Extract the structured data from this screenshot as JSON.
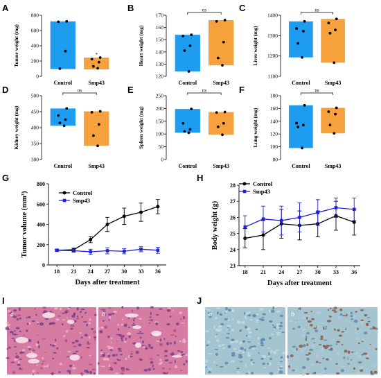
{
  "colors": {
    "control_bar": "#1e9cf0",
    "smp43_bar": "#f7a13c",
    "control_line": "#000000",
    "smp43_line": "#1f1fe0",
    "he_base": "#d67ca2",
    "ihc_base": "#a4c4d0",
    "ihc_stain": "#8a4a30"
  },
  "chart_data": [
    {
      "panel": "A",
      "type": "bar",
      "categories": [
        "Control",
        "Smp43"
      ],
      "ylabel": "Tumor weight (mg)",
      "ylim": [
        0,
        800
      ],
      "yticks": [
        0,
        200,
        400,
        600,
        800
      ],
      "values": [
        720,
        245
      ],
      "bar_bottom": [
        95,
        90
      ],
      "points": [
        [
          720,
          715,
          330,
          100
        ],
        [
          245,
          225,
          185,
          130,
          105
        ]
      ],
      "annotations": [
        "*"
      ]
    },
    {
      "panel": "B",
      "type": "bar",
      "categories": [
        "Control",
        "Smp43"
      ],
      "ylabel": "Heart weight (mg)",
      "ylim": [
        120,
        170
      ],
      "yticks": [
        120,
        130,
        140,
        150,
        160,
        170
      ],
      "values": [
        154,
        166
      ],
      "bar_bottom": [
        124,
        129
      ],
      "points": [
        [
          154,
          153,
          145,
          141,
          124
        ],
        [
          166,
          165,
          148,
          135,
          129
        ]
      ],
      "annotations": [
        "ns"
      ]
    },
    {
      "panel": "C",
      "type": "bar",
      "categories": [
        "Control",
        "Smp43"
      ],
      "ylabel": "Liver weight (mg)",
      "ylim": [
        1100,
        1400
      ],
      "yticks": [
        1100,
        1200,
        1300,
        1400
      ],
      "values": [
        1370,
        1382
      ],
      "bar_bottom": [
        1193,
        1167
      ],
      "points": [
        [
          1370,
          1335,
          1322,
          1262,
          1193
        ],
        [
          1382,
          1362,
          1328,
          1312,
          1167
        ]
      ],
      "annotations": [
        "ns"
      ]
    },
    {
      "panel": "D",
      "type": "bar",
      "categories": [
        "Control",
        "Smp43"
      ],
      "ylabel": "Kidney weight (mg)",
      "ylim": [
        300,
        500
      ],
      "yticks": [
        300,
        350,
        400,
        450,
        500
      ],
      "values": [
        460,
        451
      ],
      "bar_bottom": [
        406,
        343
      ],
      "points": [
        [
          460,
          438,
          425,
          415,
          406
        ],
        [
          451,
          448,
          410,
          375,
          343
        ]
      ],
      "annotations": [
        "ns"
      ]
    },
    {
      "panel": "E",
      "type": "bar",
      "categories": [
        "Control",
        "Smp43"
      ],
      "ylabel": "Spleen weight (mg)",
      "ylim": [
        0,
        250
      ],
      "yticks": [
        0,
        50,
        100,
        150,
        200,
        250
      ],
      "values": [
        198,
        186
      ],
      "bar_bottom": [
        105,
        97
      ],
      "points": [
        [
          198,
          142,
          118,
          110,
          105
        ],
        [
          186,
          184,
          142,
          128,
          97
        ]
      ],
      "annotations": [
        "ns"
      ]
    },
    {
      "panel": "F",
      "type": "bar",
      "categories": [
        "Control",
        "Smp43"
      ],
      "ylabel": "Lung weight (mg)",
      "ylim": [
        80,
        180
      ],
      "yticks": [
        80,
        100,
        120,
        140,
        160,
        180
      ],
      "values": [
        165,
        161
      ],
      "bar_bottom": [
        98,
        121
      ],
      "points": [
        [
          165,
          137,
          134,
          131,
          98
        ],
        [
          161,
          155,
          151,
          134,
          121
        ]
      ],
      "annotations": [
        "ns"
      ]
    },
    {
      "panel": "G",
      "type": "line",
      "x": [
        18,
        21,
        24,
        27,
        30,
        33,
        36
      ],
      "xlabel": "Days after treatment",
      "ylabel": "Tumor volume (mm³)",
      "ylim": [
        0,
        800
      ],
      "yticks": [
        0,
        200,
        400,
        600,
        800
      ],
      "legend": "top-left",
      "series": [
        {
          "name": "Control",
          "values": [
            145,
            150,
            250,
            400,
            480,
            520,
            575
          ],
          "error": [
            10,
            15,
            30,
            70,
            80,
            90,
            70
          ]
        },
        {
          "name": "Smp43",
          "values": [
            145,
            140,
            130,
            140,
            135,
            155,
            145
          ],
          "error": [
            10,
            15,
            25,
            30,
            25,
            25,
            30
          ]
        }
      ]
    },
    {
      "panel": "H",
      "type": "line",
      "x": [
        18,
        21,
        24,
        27,
        30,
        33,
        36
      ],
      "xlabel": "Days after treatment",
      "ylabel": "Body weight (g)",
      "ylim": [
        23,
        28
      ],
      "yticks": [
        23,
        24,
        25,
        26,
        27,
        28
      ],
      "legend": "top-left",
      "series": [
        {
          "name": "Control",
          "values": [
            24.7,
            24.9,
            25.6,
            25.5,
            25.6,
            26.1,
            25.7
          ],
          "error": [
            0.6,
            0.9,
            0.9,
            0.9,
            0.8,
            0.9,
            0.8
          ]
        },
        {
          "name": "Smp43",
          "values": [
            25.4,
            25.9,
            25.8,
            26.0,
            26.3,
            26.6,
            26.5
          ],
          "error": [
            0.7,
            0.8,
            0.9,
            0.9,
            0.8,
            0.6,
            0.7
          ]
        }
      ]
    }
  ],
  "panels": {
    "A": "A",
    "B": "B",
    "C": "C",
    "D": "D",
    "E": "E",
    "F": "F",
    "G": "G",
    "H": "H",
    "I": "I",
    "J": "J"
  },
  "images": {
    "I": {
      "sub": [
        "a",
        "b"
      ],
      "stain": "H&E"
    },
    "J": {
      "sub": [
        "a",
        "b"
      ],
      "stain": "IHC"
    }
  }
}
